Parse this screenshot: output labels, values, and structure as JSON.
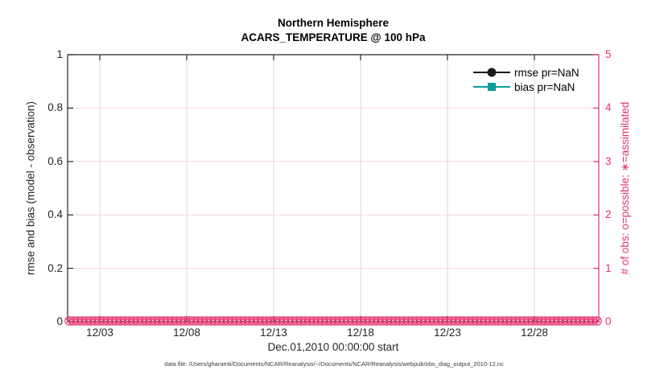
{
  "figure": {
    "title_line1": "Northern Hemisphere",
    "title_line2": "ACARS_TEMPERATURE @ 100 hPa",
    "xlabel": "Dec.01,2010 00:00:00 start",
    "ylabel_left": "rmse and bias (model - observation)",
    "ylabel_right": "# of obs: o=possible; ∗=assimilated",
    "datafile_note": "data file: /Users/gharamti/Documents/NCAR/Reanalysis/~/Documents/NCAR/Reanalysis/webpub/obs_diag_output_2010-12.nc"
  },
  "legend": {
    "items": [
      {
        "label": "rmse pr=NaN",
        "marker": "circle",
        "color": "#1a1a1a"
      },
      {
        "label": "bias pr=NaN",
        "marker": "square",
        "color": "#0d9d9d"
      }
    ]
  },
  "colors": {
    "obs_count_pink": "#e2336f",
    "pink_gridline": "#f6d6e3",
    "gray_gridline": "#d9d9d9",
    "axis_dark": "#262626",
    "bias_teal": "#0d9d9d",
    "rmse_black": "#1a1a1a"
  },
  "chart_data": {
    "type": "line",
    "title": "Northern Hemisphere",
    "subtitle": "ACARS_TEMPERATURE @ 100 hPa",
    "xlabel": "Dec.01,2010 00:00:00 start",
    "x_ticks": [
      "12/03",
      "12/08",
      "12/13",
      "12/18",
      "12/23",
      "12/28"
    ],
    "x_range_days": [
      "12/01",
      "12/31"
    ],
    "n_time_bins": 124,
    "y_left": {
      "label": "rmse and bias (model - observation)",
      "range": [
        0,
        1
      ],
      "ticks": [
        "0",
        "0.2",
        "0.4",
        "0.6",
        "0.8",
        "1"
      ]
    },
    "y_right": {
      "label": "# of obs: o=possible; ∗=assimilated",
      "range": [
        0,
        5
      ],
      "ticks": [
        "0",
        "1",
        "2",
        "3",
        "4",
        "5"
      ]
    },
    "series": [
      {
        "name": "rmse",
        "legend": "rmse pr=NaN",
        "marker": "circle",
        "color": "#1a1a1a",
        "value": "NaN",
        "plotted_points": 0
      },
      {
        "name": "bias",
        "legend": "bias pr=NaN",
        "marker": "square",
        "color": "#0d9d9d",
        "value": "NaN",
        "plotted_points": 0
      },
      {
        "name": "num_obs_possible",
        "marker": "o",
        "color": "#e2336f",
        "constant_value": 0
      },
      {
        "name": "num_obs_assimilated",
        "marker": "*",
        "color": "#e2336f",
        "constant_value": 0
      }
    ],
    "grid": true,
    "legend_position": "top-right-inside",
    "legend_box": false
  }
}
